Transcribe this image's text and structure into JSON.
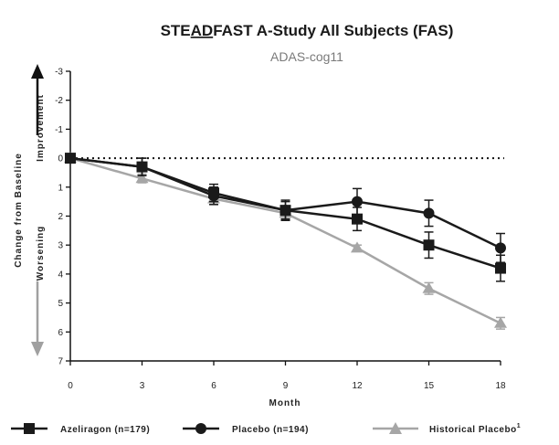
{
  "chart_data": {
    "type": "line",
    "title_parts": [
      "STE",
      "AD",
      "FAST A-Study All Subjects (FAS)"
    ],
    "subtitle": "ADAS-cog11",
    "xlabel": "Month",
    "ylabel_main": "Change from Baseline",
    "ylabel_up": "Improvement",
    "ylabel_down": "Worsening",
    "x": [
      0,
      3,
      6,
      9,
      12,
      15,
      18
    ],
    "x_ticks": [
      "0",
      "3",
      "6",
      "9",
      "12",
      "15",
      "18"
    ],
    "xlim": [
      0,
      18
    ],
    "y_ticks": [
      "-3",
      "-2",
      "-1",
      "0",
      "1",
      "2",
      "3",
      "4",
      "5",
      "6",
      "7"
    ],
    "ylim": [
      -3,
      7
    ],
    "y_inverted": true,
    "reference_line": 0,
    "series": [
      {
        "name": "Azeliragon (n=179)",
        "marker": "square",
        "color": "#1a1a1a",
        "values": [
          0,
          0.3,
          1.2,
          1.8,
          2.1,
          3.0,
          3.8
        ],
        "err": [
          0,
          0.3,
          0.3,
          0.3,
          0.4,
          0.45,
          0.45
        ]
      },
      {
        "name": "Placebo (n=194)",
        "marker": "circle",
        "color": "#1a1a1a",
        "values": [
          0,
          0.3,
          1.3,
          1.8,
          1.5,
          1.9,
          3.1
        ],
        "err": [
          0,
          0.3,
          0.3,
          0.35,
          0.45,
          0.45,
          0.5
        ]
      },
      {
        "name": "Historical Placebo",
        "marker": "triangle",
        "color": "#a6a6a6",
        "values": [
          0,
          0.7,
          1.4,
          1.9,
          3.1,
          4.5,
          5.7
        ],
        "err": [
          0,
          0.15,
          0.2,
          0.2,
          0.1,
          0.2,
          0.2
        ]
      }
    ],
    "legend_superscript": "1",
    "legend_position": "bottom"
  }
}
